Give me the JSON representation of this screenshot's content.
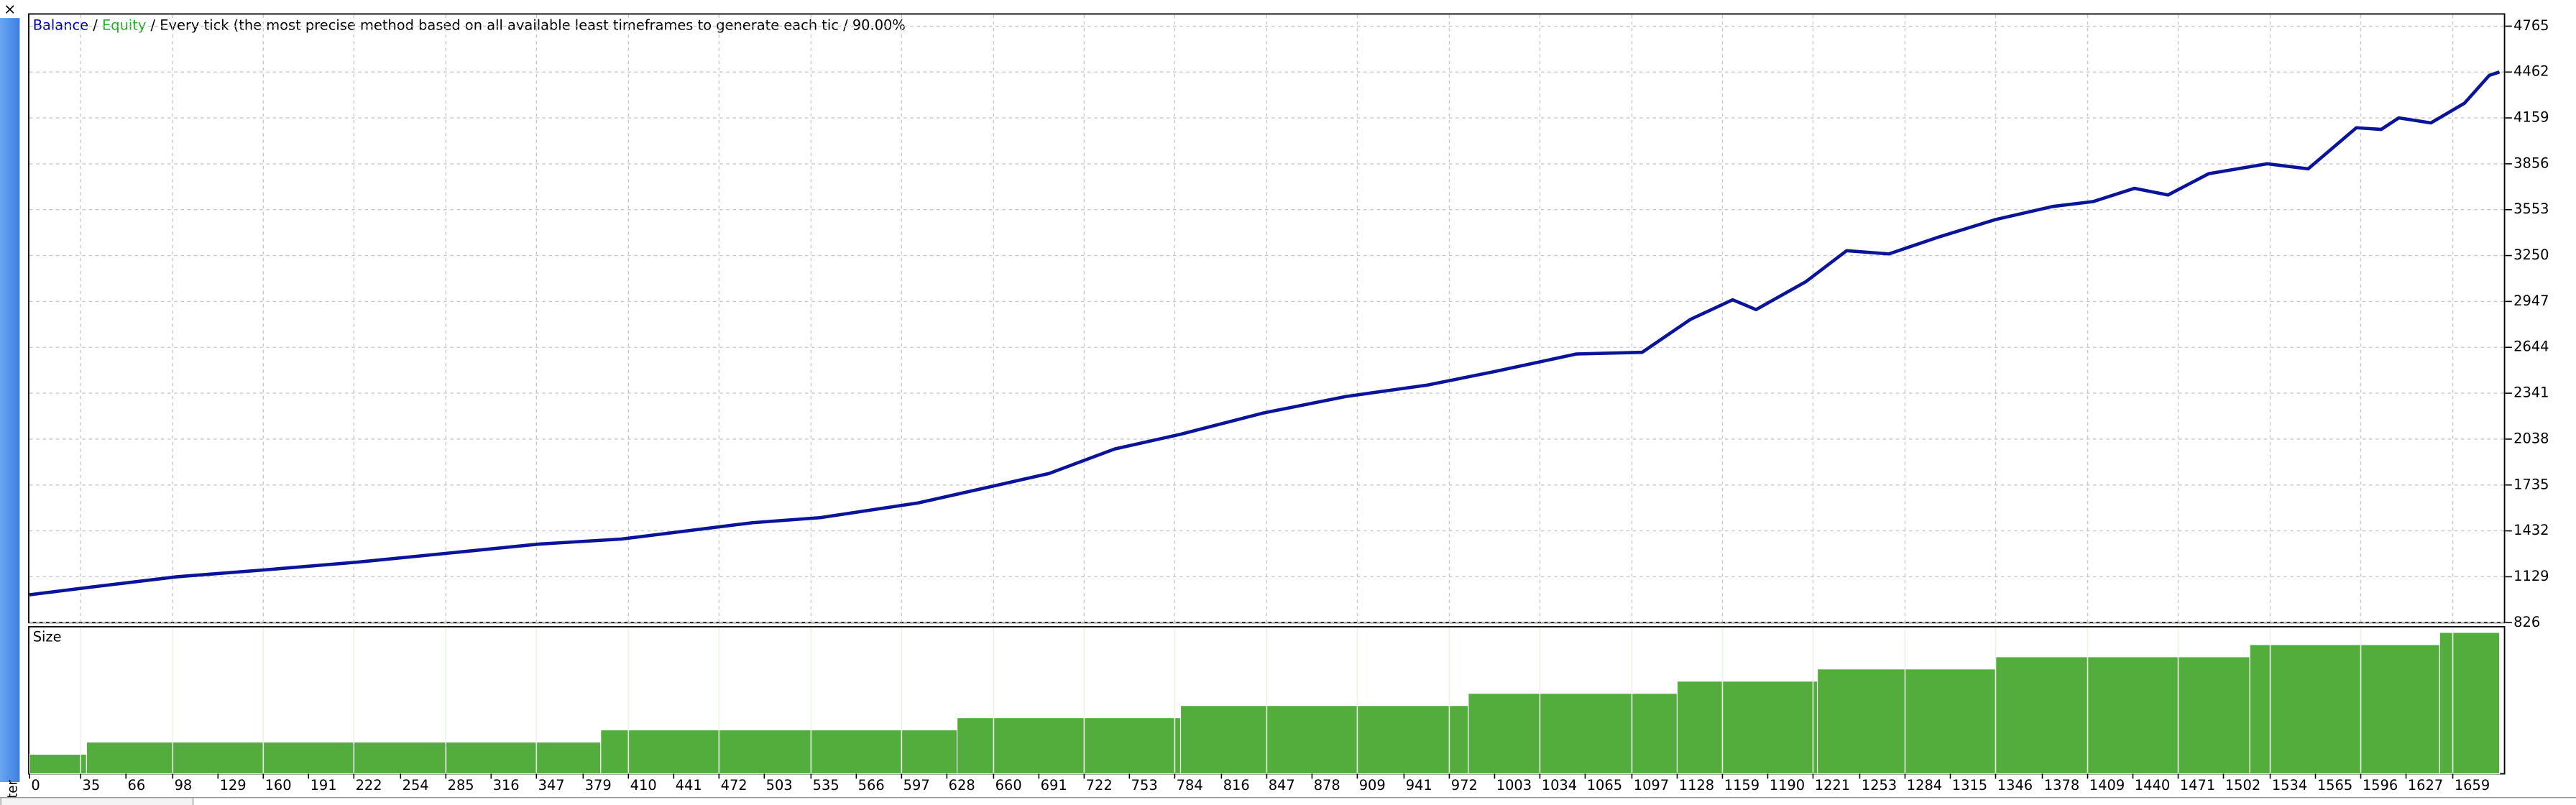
{
  "window": {
    "close": "×",
    "side_label": "ter"
  },
  "chart_data": [
    {
      "type": "line",
      "legend": [
        {
          "name": "Balance",
          "color": "#0000aa"
        },
        {
          "name": "Equity",
          "color": "#22aa22"
        }
      ],
      "separator": "/",
      "subtitle": "Every tick (the most precise method based on all available least timeframes to generate each tic / 90.00%",
      "x": [
        0,
        45,
        101,
        158,
        225,
        293,
        349,
        405,
        450,
        495,
        541,
        608,
        653,
        698,
        743,
        788,
        845,
        901,
        957,
        1002,
        1059,
        1104,
        1137,
        1166,
        1182,
        1216,
        1244,
        1273,
        1306,
        1346,
        1385,
        1413,
        1441,
        1464,
        1492,
        1532,
        1560,
        1593,
        1610,
        1622,
        1644,
        1667,
        1684,
        1691
      ],
      "series": [
        {
          "name": "Balance",
          "color": "#0a149b",
          "values": [
            1010,
            1064,
            1129,
            1172,
            1226,
            1291,
            1345,
            1378,
            1432,
            1486,
            1519,
            1616,
            1713,
            1811,
            1973,
            2070,
            2211,
            2319,
            2395,
            2482,
            2600,
            2611,
            2828,
            2958,
            2893,
            3077,
            3282,
            3261,
            3369,
            3488,
            3574,
            3607,
            3694,
            3650,
            3791,
            3856,
            3823,
            4094,
            4083,
            4159,
            4126,
            4256,
            4440,
            4462
          ]
        }
      ],
      "xlim": [
        0,
        1695
      ],
      "ylim": [
        826,
        4840
      ],
      "yticks": [
        826,
        1129,
        1432,
        1735,
        2038,
        2341,
        2644,
        2947,
        3250,
        3553,
        3856,
        4159,
        4462,
        4765
      ],
      "grid": true
    },
    {
      "type": "histogram",
      "title": "Size",
      "color": "#52ad3c",
      "bins": [
        0,
        39,
        391,
        635,
        788,
        985,
        1128,
        1224,
        1346,
        1520,
        1650,
        1691
      ],
      "values": [
        0.02,
        0.03,
        0.04,
        0.05,
        0.06,
        0.07,
        0.08,
        0.09,
        0.1,
        0.11,
        0.12
      ],
      "xlim": [
        0,
        1695
      ],
      "ylim": [
        0.004,
        0.124
      ],
      "xticks": [
        0,
        35,
        66,
        98,
        129,
        160,
        191,
        222,
        254,
        285,
        316,
        347,
        379,
        410,
        441,
        472,
        503,
        535,
        566,
        597,
        628,
        660,
        691,
        722,
        753,
        784,
        816,
        847,
        878,
        909,
        941,
        972,
        1003,
        1034,
        1065,
        1097,
        1128,
        1159,
        1190,
        1221,
        1253,
        1284,
        1315,
        1346,
        1378,
        1409,
        1440,
        1471,
        1502,
        1534,
        1565,
        1596,
        1627,
        1659
      ],
      "grid": true
    }
  ]
}
